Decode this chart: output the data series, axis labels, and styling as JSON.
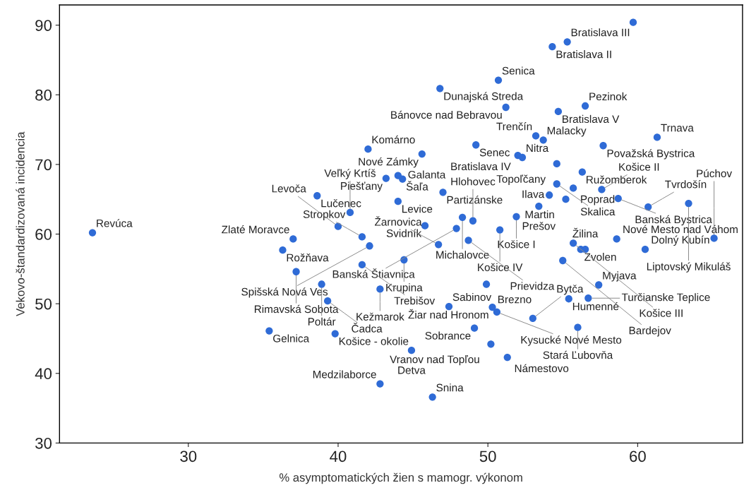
{
  "chart_data": {
    "type": "scatter",
    "xlabel": "% asymptomatických žien s mamogr. výkonom",
    "ylabel": "Vekovo-štandardizovaná incidencia",
    "xlim": [
      21.4,
      67.0
    ],
    "ylim": [
      30,
      92.9
    ],
    "xticks": [
      30,
      40,
      50,
      60
    ],
    "yticks": [
      30,
      40,
      50,
      60,
      70,
      80,
      90
    ],
    "grid": false,
    "marker": "circle",
    "series": [
      {
        "color": "#2f6bd6",
        "x": [
          23.6,
          59.7,
          55.3,
          54.3,
          50.7,
          46.8,
          51.2,
          56.5,
          54.7,
          61.3,
          53.2,
          53.7,
          57.7,
          49.2,
          42.0,
          45.6,
          52.0,
          52.3,
          54.6,
          56.3,
          55.7,
          43.2,
          44.0,
          44.3,
          38.6,
          47.0,
          44.0,
          54.6,
          54.1,
          57.6,
          55.2,
          58.7,
          63.4,
          60.7,
          53.4,
          51.9,
          48.3,
          49.0,
          50.8,
          45.8,
          47.9,
          48.7,
          46.7,
          44.4,
          37.0,
          36.3,
          41.6,
          42.1,
          41.6,
          40.0,
          40.8,
          37.2,
          42.8,
          38.9,
          39.3,
          35.4,
          39.8,
          47.4,
          49.9,
          50.3,
          50.6,
          55.4,
          56.7,
          57.4,
          53.0,
          56.0,
          49.1,
          50.2,
          51.3,
          44.9,
          42.8,
          46.3,
          56.2,
          56.5,
          55.7,
          58.6,
          60.5,
          65.1,
          55.0
        ],
        "values": [
          60.2,
          90.4,
          87.6,
          86.9,
          82.1,
          80.9,
          78.2,
          78.4,
          77.6,
          73.9,
          74.1,
          73.5,
          72.7,
          72.8,
          72.2,
          71.5,
          71.3,
          71.0,
          70.1,
          68.9,
          66.6,
          68.0,
          68.4,
          67.9,
          65.5,
          66.0,
          64.7,
          67.2,
          65.6,
          66.4,
          65.0,
          65.1,
          64.4,
          63.9,
          64.0,
          62.5,
          62.4,
          61.9,
          60.6,
          61.2,
          60.8,
          59.1,
          58.5,
          56.3,
          59.3,
          57.7,
          59.6,
          58.3,
          55.6,
          61.1,
          63.1,
          54.6,
          52.1,
          52.8,
          50.4,
          46.1,
          45.7,
          49.6,
          52.8,
          49.5,
          48.8,
          50.7,
          50.8,
          52.7,
          47.9,
          46.6,
          46.5,
          44.2,
          42.3,
          43.3,
          38.5,
          36.6,
          57.8,
          57.8,
          58.7,
          59.3,
          57.8,
          59.4,
          56.2
        ]
      }
    ],
    "annotations": [
      {
        "text": "Revúca",
        "x": 23.6,
        "y": 60.2
      },
      {
        "text": "Bratislava III",
        "x": 55.3,
        "y": 87.6
      },
      {
        "text": "Bratislava II",
        "x": 54.3,
        "y": 86.9
      },
      {
        "text": "Senica",
        "x": 50.7,
        "y": 82.1
      },
      {
        "text": "Dunajská Streda",
        "x": 46.8,
        "y": 80.9
      },
      {
        "text": "Bánovce nad Bebravou",
        "x": 51.2,
        "y": 78.2
      },
      {
        "text": "Pezinok",
        "x": 56.5,
        "y": 78.4
      },
      {
        "text": "Bratislava V",
        "x": 54.7,
        "y": 77.6
      },
      {
        "text": "Trnava",
        "x": 61.3,
        "y": 73.9
      },
      {
        "text": "Trenčín",
        "x": 53.2,
        "y": 74.1
      },
      {
        "text": "Malacky",
        "x": 53.7,
        "y": 73.5
      },
      {
        "text": "Považská Bystrica",
        "x": 57.7,
        "y": 72.7
      },
      {
        "text": "Senec",
        "x": 49.2,
        "y": 72.8
      },
      {
        "text": "Komárno",
        "x": 42.0,
        "y": 72.2
      },
      {
        "text": "Nové Zámky",
        "x": 45.6,
        "y": 71.5
      },
      {
        "text": "Bratislava IV",
        "x": 52.0,
        "y": 71.3
      },
      {
        "text": "Nitra",
        "x": 52.3,
        "y": 71.0
      },
      {
        "text": "Topoľčany",
        "x": 54.6,
        "y": 70.1
      },
      {
        "text": "Ružomberok",
        "x": 56.3,
        "y": 68.9
      },
      {
        "text": "Poprad",
        "x": 55.7,
        "y": 66.6
      },
      {
        "text": "Piešťany",
        "x": 43.2,
        "y": 68.0
      },
      {
        "text": "Galanta",
        "x": 44.0,
        "y": 68.4
      },
      {
        "text": "Šaľa",
        "x": 44.3,
        "y": 67.9
      },
      {
        "text": "Lučenec",
        "x": 38.6,
        "y": 65.5
      },
      {
        "text": "Partizánske",
        "x": 47.0,
        "y": 66.0
      },
      {
        "text": "Levice",
        "x": 44.0,
        "y": 64.7
      },
      {
        "text": "Skalica",
        "x": 54.6,
        "y": 67.2
      },
      {
        "text": "Ilava",
        "x": 54.1,
        "y": 65.6
      },
      {
        "text": "Košice II",
        "x": 57.6,
        "y": 66.4
      },
      {
        "text": "Martin",
        "x": 55.2,
        "y": 65.0
      },
      {
        "text": "Banská Bystrica",
        "x": 58.7,
        "y": 65.1
      },
      {
        "text": "Liptovský Mikuláš",
        "x": 63.4,
        "y": 64.4
      },
      {
        "text": "Tvrdošín",
        "x": 60.7,
        "y": 63.9
      },
      {
        "text": "Prešov",
        "x": 53.4,
        "y": 64.0
      },
      {
        "text": "Košice I",
        "x": 51.9,
        "y": 62.5
      },
      {
        "text": "Michalovce",
        "x": 48.3,
        "y": 62.4
      },
      {
        "text": "Hlohovec",
        "x": 49.0,
        "y": 61.9
      },
      {
        "text": "Košice IV",
        "x": 50.8,
        "y": 60.6
      },
      {
        "text": "Svidník",
        "x": 45.8,
        "y": 61.2
      },
      {
        "text": "Banská Štiavnica",
        "x": 47.9,
        "y": 60.8
      },
      {
        "text": "Prievidza",
        "x": 48.7,
        "y": 59.1
      },
      {
        "text": "Žarnovica",
        "x": 46.7,
        "y": 58.5
      },
      {
        "text": "Krupina",
        "x": 44.4,
        "y": 56.3
      },
      {
        "text": "Zlaté Moravce",
        "x": 37.0,
        "y": 59.3
      },
      {
        "text": "Rožňava",
        "x": 36.3,
        "y": 57.7
      },
      {
        "text": "Stropkov",
        "x": 41.6,
        "y": 59.6
      },
      {
        "text": "Spišská Nová Ves",
        "x": 42.1,
        "y": 58.3
      },
      {
        "text": "Trebišov",
        "x": 41.6,
        "y": 55.6
      },
      {
        "text": "Levoča",
        "x": 40.0,
        "y": 61.1
      },
      {
        "text": "Veľký Krtíš",
        "x": 40.8,
        "y": 63.1
      },
      {
        "text": "Rimavská Sobota",
        "x": 37.2,
        "y": 54.6
      },
      {
        "text": "Kežmarok",
        "x": 42.8,
        "y": 52.1
      },
      {
        "text": "Poltár",
        "x": 38.9,
        "y": 52.8
      },
      {
        "text": "Čadca",
        "x": 39.3,
        "y": 50.4
      },
      {
        "text": "Gelnica",
        "x": 35.4,
        "y": 46.1
      },
      {
        "text": "Košice - okolie",
        "x": 39.8,
        "y": 45.7
      },
      {
        "text": "Sabinov",
        "x": 47.4,
        "y": 49.6
      },
      {
        "text": "Brezno",
        "x": 49.9,
        "y": 52.8
      },
      {
        "text": "Žiar nad Hronom",
        "x": 50.3,
        "y": 49.5
      },
      {
        "text": "Kysucké Nové Mesto",
        "x": 50.6,
        "y": 48.8
      },
      {
        "text": "Humenné",
        "x": 55.4,
        "y": 50.7
      },
      {
        "text": "Turčianske Teplice",
        "x": 56.7,
        "y": 50.8
      },
      {
        "text": "Myjava",
        "x": 57.4,
        "y": 52.7
      },
      {
        "text": "Bytča",
        "x": 53.0,
        "y": 47.9
      },
      {
        "text": "Stará Ľubovňa",
        "x": 56.0,
        "y": 46.6
      },
      {
        "text": "Sobrance",
        "x": 49.1,
        "y": 46.5
      },
      {
        "text": "Vranov nad Topľou",
        "x": 50.2,
        "y": 44.2
      },
      {
        "text": "Námestovo",
        "x": 51.3,
        "y": 42.3
      },
      {
        "text": "Detva",
        "x": 44.9,
        "y": 43.3
      },
      {
        "text": "Medzilaborce",
        "x": 42.8,
        "y": 38.5
      },
      {
        "text": "Snina",
        "x": 46.3,
        "y": 36.6
      },
      {
        "text": "Zvolen",
        "x": 56.2,
        "y": 57.8
      },
      {
        "text": "Žilina",
        "x": 56.5,
        "y": 57.8
      },
      {
        "text": "Košice III",
        "x": 55.7,
        "y": 58.7
      },
      {
        "text": "Nové Mesto nad Váhom",
        "x": 58.6,
        "y": 59.3
      },
      {
        "text": "Dolný Kubín",
        "x": 60.5,
        "y": 57.8
      },
      {
        "text": "Púchov",
        "x": 65.1,
        "y": 59.4
      },
      {
        "text": "Bardejov",
        "x": 55.0,
        "y": 56.2
      }
    ]
  }
}
